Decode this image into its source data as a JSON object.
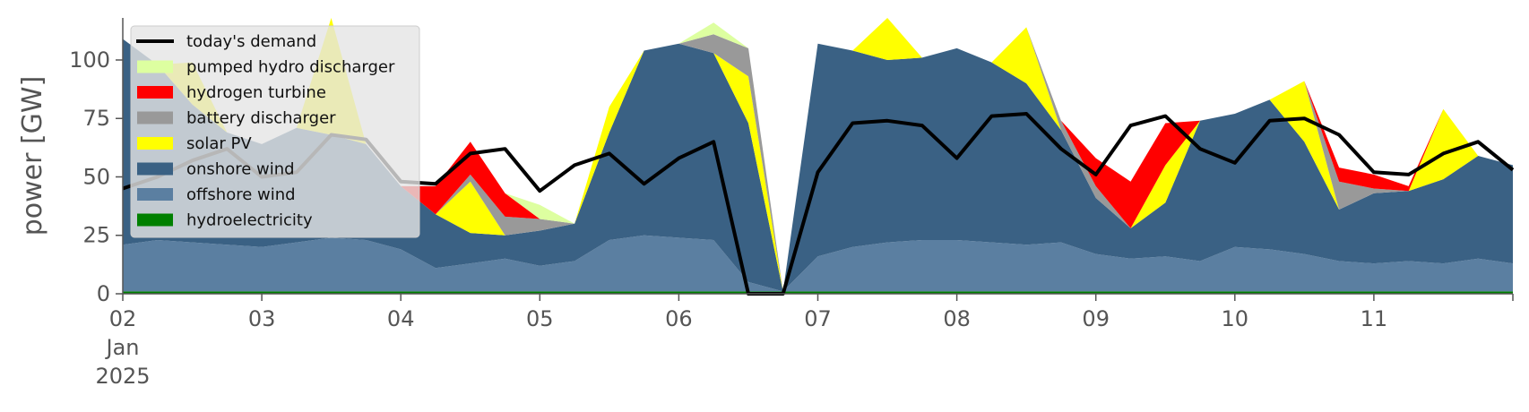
{
  "chart_data": {
    "type": "area",
    "ylabel": "power [GW]",
    "xlabel": "",
    "ylim": [
      0,
      118
    ],
    "xlim": [
      "2025-01-02T00:00",
      "2025-01-12T00:00"
    ],
    "yticks": [
      0,
      25,
      50,
      75,
      100
    ],
    "xticks": [
      {
        "x": "2025-01-02",
        "label": "02",
        "label2": "Jan",
        "label3": "2025"
      },
      {
        "x": "2025-01-03",
        "label": "03"
      },
      {
        "x": "2025-01-04",
        "label": "04"
      },
      {
        "x": "2025-01-05",
        "label": "05"
      },
      {
        "x": "2025-01-06",
        "label": "06"
      },
      {
        "x": "2025-01-07",
        "label": "07"
      },
      {
        "x": "2025-01-08",
        "label": "08"
      },
      {
        "x": "2025-01-09",
        "label": "09"
      },
      {
        "x": "2025-01-10",
        "label": "10"
      },
      {
        "x": "2025-01-11",
        "label": "11"
      }
    ],
    "legend_position": "top-left",
    "x": [
      "2025-01-02T00:00",
      "2025-01-02T06:00",
      "2025-01-02T12:00",
      "2025-01-02T18:00",
      "2025-01-03T00:00",
      "2025-01-03T06:00",
      "2025-01-03T12:00",
      "2025-01-03T18:00",
      "2025-01-04T00:00",
      "2025-01-04T06:00",
      "2025-01-04T12:00",
      "2025-01-04T18:00",
      "2025-01-05T00:00",
      "2025-01-05T06:00",
      "2025-01-05T12:00",
      "2025-01-05T18:00",
      "2025-01-06T00:00",
      "2025-01-06T06:00",
      "2025-01-06T12:00",
      "2025-01-06T18:00",
      "2025-01-07T00:00",
      "2025-01-07T06:00",
      "2025-01-07T12:00",
      "2025-01-07T18:00",
      "2025-01-08T00:00",
      "2025-01-08T06:00",
      "2025-01-08T12:00",
      "2025-01-08T18:00",
      "2025-01-09T00:00",
      "2025-01-09T06:00",
      "2025-01-09T12:00",
      "2025-01-09T18:00",
      "2025-01-10T00:00",
      "2025-01-10T06:00",
      "2025-01-10T12:00",
      "2025-01-10T18:00",
      "2025-01-11T00:00",
      "2025-01-11T06:00",
      "2025-01-11T12:00",
      "2025-01-11T18:00",
      "2025-01-12T00:00"
    ],
    "series": [
      {
        "name": "hydroelectricity",
        "color": "#008000",
        "values": [
          1,
          1,
          1,
          1,
          1,
          1,
          1,
          1,
          1,
          1,
          1,
          1,
          1,
          1,
          1,
          1,
          1,
          1,
          1,
          1,
          1,
          1,
          1,
          1,
          1,
          1,
          1,
          1,
          1,
          1,
          1,
          1,
          1,
          1,
          1,
          1,
          1,
          1,
          1,
          1,
          1
        ]
      },
      {
        "name": "offshore wind",
        "color": "#5b7fa1",
        "values": [
          20,
          22,
          21,
          20,
          19,
          21,
          23,
          22,
          18,
          10,
          12,
          14,
          11,
          13,
          22,
          24,
          23,
          22,
          4,
          0,
          15,
          19,
          21,
          22,
          22,
          21,
          20,
          21,
          16,
          14,
          15,
          13,
          19,
          18,
          16,
          13,
          12,
          13,
          12,
          14,
          12
        ]
      },
      {
        "name": "onshore wind",
        "color": "#3a6184",
        "values": [
          88,
          75,
          59,
          48,
          44,
          49,
          44,
          41,
          27,
          23,
          13,
          10,
          15,
          16,
          46,
          79,
          83,
          80,
          68,
          0,
          91,
          84,
          78,
          78,
          82,
          77,
          69,
          48,
          24,
          13,
          23,
          60,
          57,
          64,
          48,
          22,
          30,
          30,
          36,
          44,
          42
        ]
      },
      {
        "name": "solar PV",
        "color": "#ffff00",
        "values": [
          0,
          0,
          18,
          0,
          0,
          0,
          50,
          0,
          0,
          0,
          22,
          0,
          0,
          0,
          11,
          0,
          0,
          0,
          20,
          0,
          0,
          0,
          20,
          0,
          0,
          0,
          24,
          0,
          0,
          0,
          16,
          0,
          0,
          0,
          26,
          0,
          0,
          0,
          30,
          0,
          0
        ]
      },
      {
        "name": "battery discharger",
        "color": "#999999",
        "values": [
          0,
          0,
          0,
          0,
          0,
          0,
          0,
          0,
          0,
          0,
          3,
          8,
          5,
          0,
          0,
          0,
          0,
          8,
          12,
          0,
          0,
          0,
          0,
          0,
          0,
          0,
          0,
          4,
          5,
          0,
          0,
          0,
          0,
          0,
          0,
          12,
          2,
          0,
          0,
          0,
          0
        ]
      },
      {
        "name": "hydrogen turbine",
        "color": "#ff0000",
        "values": [
          0,
          0,
          0,
          0,
          0,
          0,
          0,
          0,
          0,
          12,
          14,
          10,
          0,
          0,
          0,
          0,
          0,
          0,
          0,
          0,
          0,
          0,
          0,
          0,
          0,
          0,
          0,
          0,
          12,
          20,
          18,
          0,
          0,
          0,
          0,
          6,
          6,
          2,
          0,
          0,
          0
        ]
      },
      {
        "name": "pumped hydro discharger",
        "color": "#ddffa0",
        "values": [
          0,
          0,
          0,
          0,
          0,
          0,
          0,
          0,
          0,
          0,
          0,
          0,
          6,
          0,
          0,
          0,
          0,
          5,
          0,
          0,
          0,
          0,
          0,
          0,
          0,
          0,
          0,
          0,
          0,
          0,
          0,
          0,
          0,
          0,
          0,
          0,
          0,
          0,
          0,
          0,
          0
        ]
      }
    ],
    "demand": {
      "name": "today's demand",
      "color": "#000000",
      "values": [
        45,
        50,
        57,
        62,
        50,
        52,
        68,
        66,
        48,
        47,
        60,
        62,
        44,
        55,
        60,
        47,
        58,
        65,
        0,
        0,
        52,
        73,
        74,
        72,
        58,
        76,
        77,
        62,
        51,
        72,
        76,
        62,
        56,
        74,
        75,
        68,
        52,
        51,
        60,
        65,
        53
      ]
    },
    "legend": [
      "today's demand",
      "pumped hydro discharger",
      "hydrogen turbine",
      "battery discharger",
      "solar PV",
      "onshore wind",
      "offshore wind",
      "hydroelectricity"
    ],
    "colors": {
      "legend_bg": "#e5e5e5",
      "axis": "#555555"
    }
  }
}
